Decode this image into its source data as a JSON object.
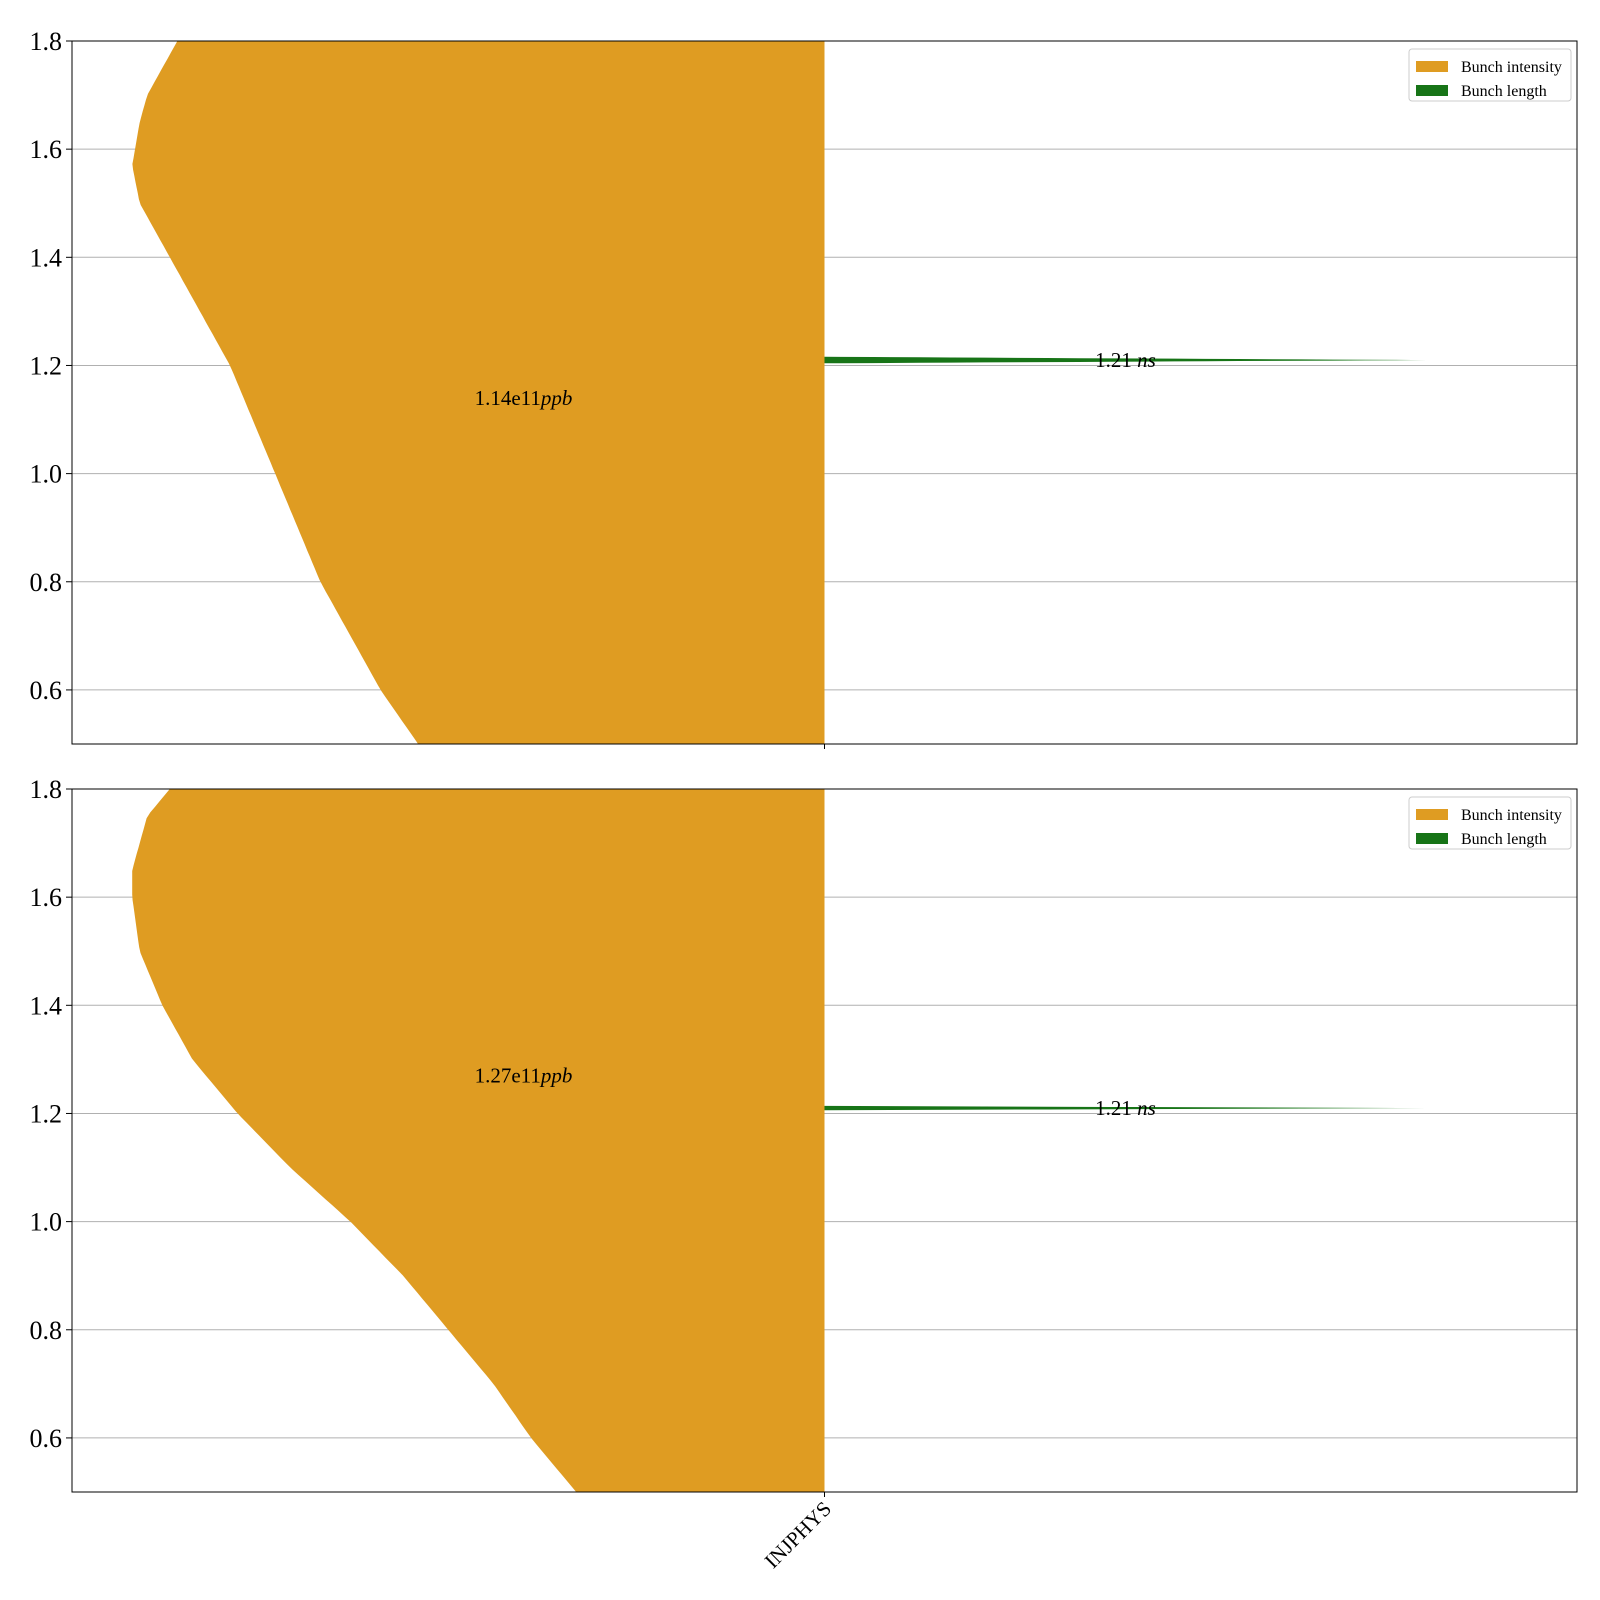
{
  "chart_data": [
    {
      "type": "violin",
      "categories": [
        "INJPHYS"
      ],
      "ylim": [
        0.5,
        1.8
      ],
      "yticks": [
        0.6,
        0.8,
        1.0,
        1.2,
        1.4,
        1.6,
        1.8
      ],
      "grid": "y",
      "legend_position": "top-right",
      "series": [
        {
          "name": "Bunch intensity",
          "color": "#df9c22",
          "side": "left",
          "peak": 1.57,
          "annotation": {
            "value": "1.14e11",
            "unit": "ppb",
            "y": 1.14
          },
          "profile": [
            [
              0.5,
              0.54
            ],
            [
              0.6,
              0.59
            ],
            [
              0.7,
              0.63
            ],
            [
              0.8,
              0.67
            ],
            [
              0.9,
              0.7
            ],
            [
              1.0,
              0.73
            ],
            [
              1.1,
              0.76
            ],
            [
              1.2,
              0.79
            ],
            [
              1.3,
              0.83
            ],
            [
              1.4,
              0.87
            ],
            [
              1.5,
              0.91
            ],
            [
              1.57,
              0.92
            ],
            [
              1.65,
              0.91
            ],
            [
              1.7,
              0.9
            ],
            [
              1.75,
              0.88
            ],
            [
              1.8,
              0.86
            ]
          ]
        },
        {
          "name": "Bunch length",
          "color": "#177417",
          "side": "right",
          "peak": 1.21,
          "annotation": {
            "value": "1.21",
            "unit": "ns",
            "y": 1.21
          },
          "spike": {
            "y": 1.21,
            "extent": 0.8,
            "halfwidth": 0.006
          }
        }
      ]
    },
    {
      "type": "violin",
      "categories": [
        "INJPHYS"
      ],
      "ylim": [
        0.5,
        1.8
      ],
      "yticks": [
        0.6,
        0.8,
        1.0,
        1.2,
        1.4,
        1.6,
        1.8
      ],
      "grid": "y",
      "legend_position": "top-right",
      "series": [
        {
          "name": "Bunch intensity",
          "color": "#df9c22",
          "side": "left",
          "peak": 1.65,
          "annotation": {
            "value": "1.27e11",
            "unit": "ppb",
            "y": 1.27
          },
          "profile": [
            [
              0.5,
              0.33
            ],
            [
              0.6,
              0.39
            ],
            [
              0.7,
              0.44
            ],
            [
              0.8,
              0.5
            ],
            [
              0.9,
              0.56
            ],
            [
              1.0,
              0.63
            ],
            [
              1.1,
              0.71
            ],
            [
              1.2,
              0.78
            ],
            [
              1.3,
              0.84
            ],
            [
              1.4,
              0.88
            ],
            [
              1.5,
              0.91
            ],
            [
              1.6,
              0.92
            ],
            [
              1.65,
              0.92
            ],
            [
              1.7,
              0.91
            ],
            [
              1.75,
              0.9
            ],
            [
              1.8,
              0.87
            ]
          ]
        },
        {
          "name": "Bunch length",
          "color": "#177417",
          "side": "right",
          "peak": 1.21,
          "annotation": {
            "value": "1.21",
            "unit": "ns",
            "y": 1.21
          },
          "spike": {
            "y": 1.21,
            "extent": 0.8,
            "halfwidth": 0.004
          }
        }
      ]
    }
  ]
}
